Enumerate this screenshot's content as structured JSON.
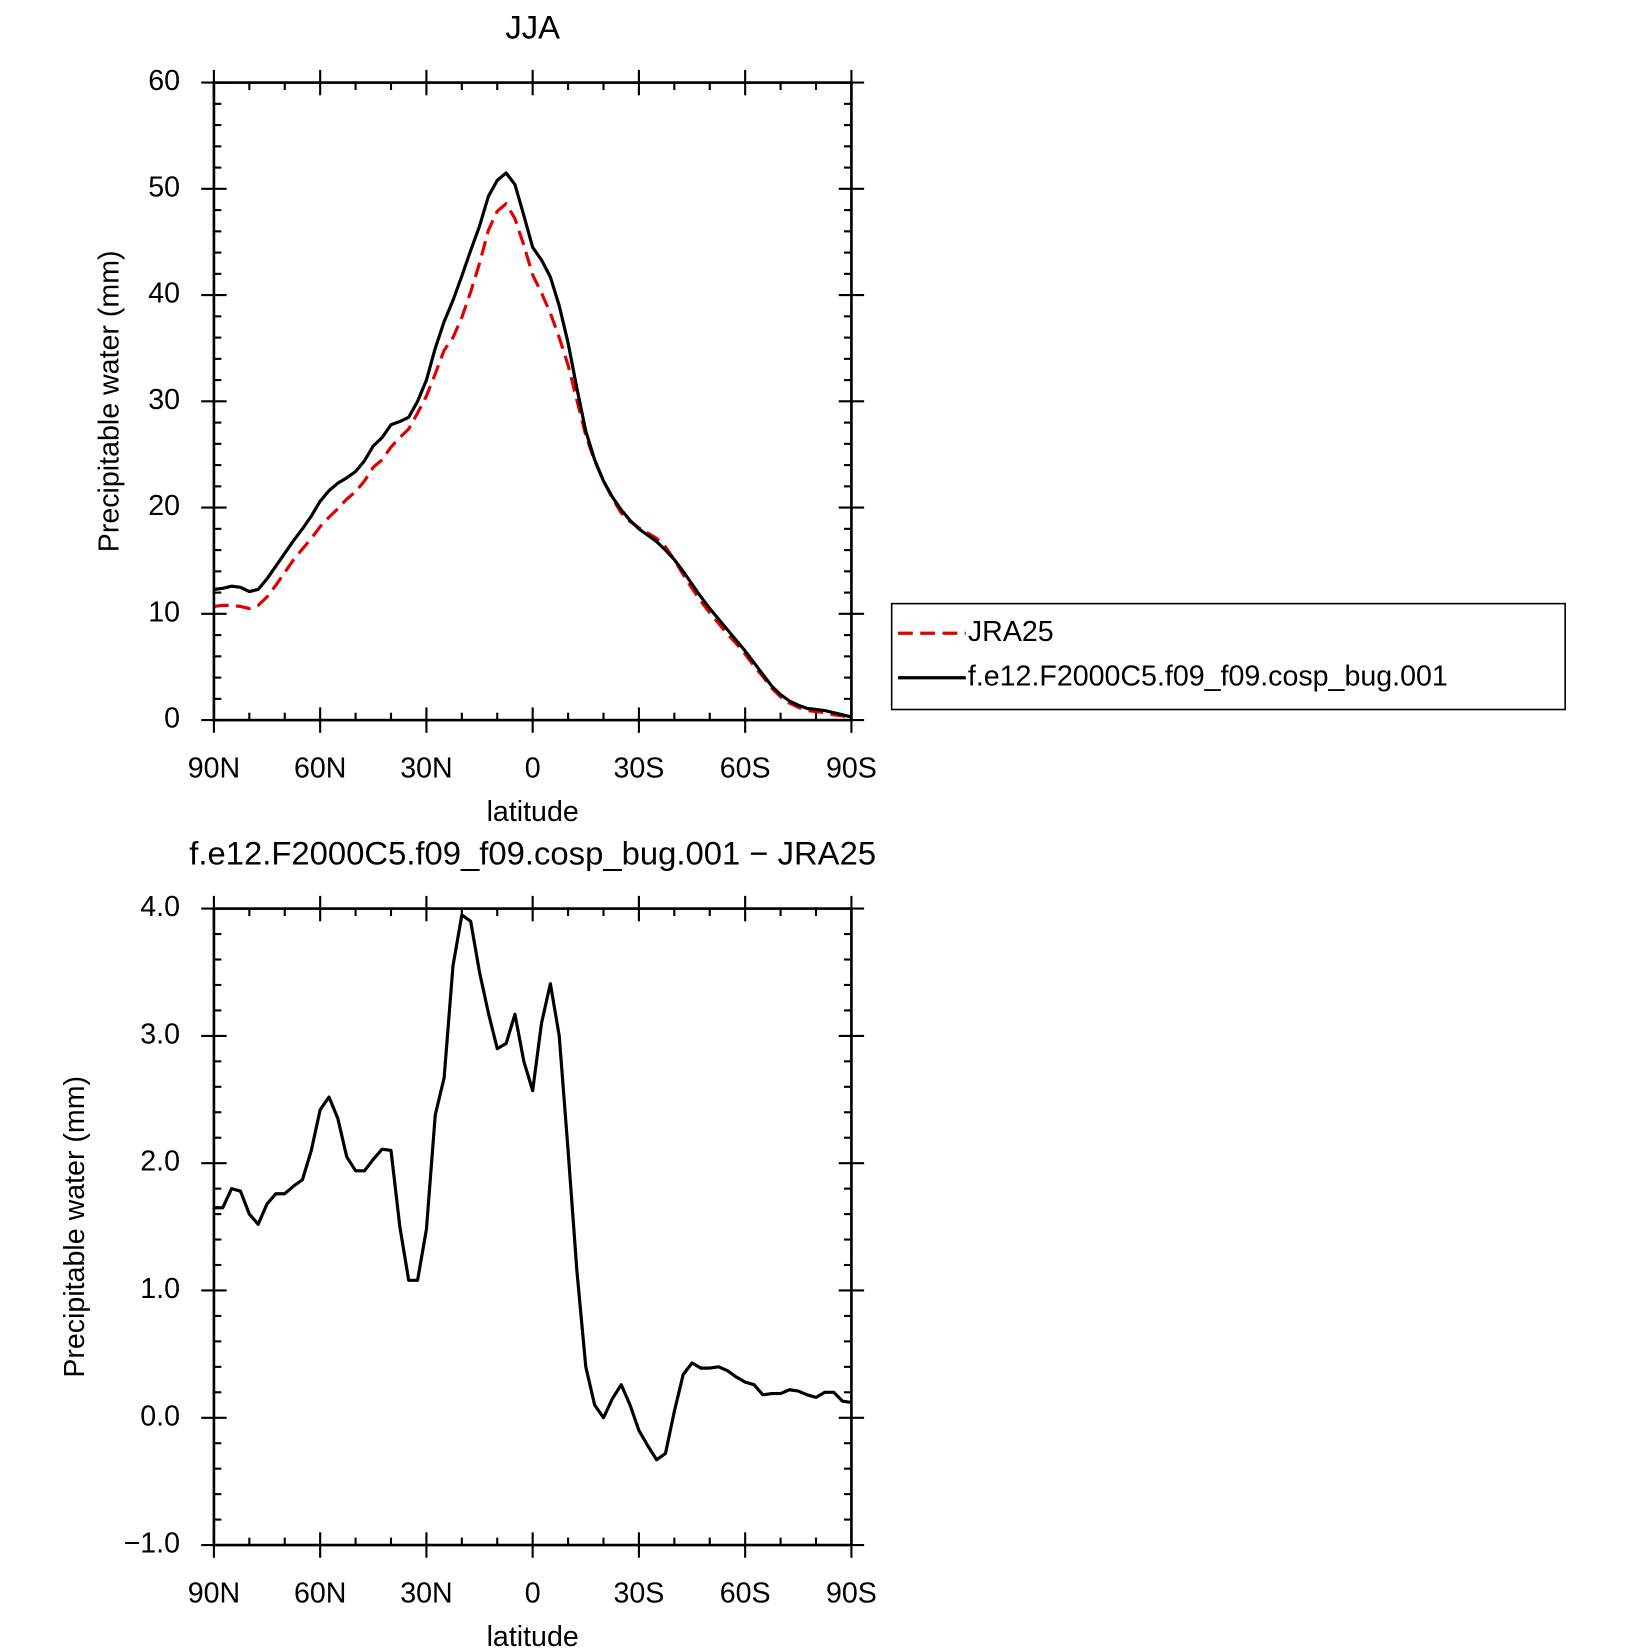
{
  "chart_data": [
    {
      "type": "line",
      "title": "JJA",
      "xlabel": "latitude",
      "ylabel": "Precipitable water (mm)",
      "legend": "right",
      "x": [
        90,
        87.5,
        85,
        82.5,
        80,
        77.5,
        75,
        72.5,
        70,
        67.5,
        65,
        62.5,
        60,
        57.5,
        55,
        52.5,
        50,
        47.5,
        45,
        42.5,
        40,
        37.5,
        35,
        32.5,
        30,
        27.5,
        25,
        22.5,
        20,
        17.5,
        15,
        12.5,
        10,
        7.5,
        5,
        2.5,
        0,
        -2.5,
        -5,
        -7.5,
        -10,
        -12.5,
        -15,
        -17.5,
        -20,
        -22.5,
        -25,
        -27.5,
        -30,
        -32.5,
        -35,
        -37.5,
        -40,
        -42.5,
        -45,
        -47.5,
        -50,
        -52.5,
        -55,
        -57.5,
        -60,
        -62.5,
        -65,
        -67.5,
        -70,
        -72.5,
        -75,
        -77.5,
        -80,
        -82.5,
        -85,
        -87.5,
        -90
      ],
      "series": [
        {
          "name": "JRA25",
          "color": "#e00000",
          "dashed": true,
          "values": [
            10.7,
            10.8,
            10.8,
            10.7,
            10.5,
            10.8,
            11.6,
            12.7,
            13.9,
            15.1,
            16.1,
            17.1,
            18.2,
            19.1,
            19.9,
            20.8,
            21.5,
            22.5,
            23.8,
            24.5,
            25.7,
            26.6,
            27.4,
            28.9,
            30.5,
            32.6,
            34.8,
            36.0,
            37.9,
            40.3,
            43.0,
            46.1,
            47.9,
            48.6,
            47.2,
            44.7,
            41.9,
            40.2,
            38.3,
            36.0,
            33.4,
            30.1,
            26.8,
            24.4,
            22.5,
            20.9,
            19.5,
            18.7,
            18.1,
            17.6,
            17.1,
            16.3,
            15.1,
            13.7,
            12.4,
            11.2,
            10.1,
            9.1,
            8.1,
            7.2,
            6.2,
            5.1,
            4.1,
            3.0,
            2.2,
            1.6,
            1.2,
            0.9,
            0.8,
            0.7,
            0.5,
            0.4,
            0.2
          ]
        },
        {
          "name": "f.e12.F2000C5.f09_f09.cosp_bug.001",
          "color": "#000000",
          "dashed": false,
          "values": [
            12.3,
            12.4,
            12.6,
            12.5,
            12.1,
            12.3,
            13.3,
            14.5,
            15.7,
            16.9,
            18.0,
            19.2,
            20.6,
            21.6,
            22.3,
            22.8,
            23.4,
            24.4,
            25.8,
            26.6,
            27.8,
            28.1,
            28.5,
            30.0,
            32.0,
            35.0,
            37.5,
            39.5,
            41.8,
            44.2,
            46.5,
            49.3,
            50.8,
            51.5,
            50.4,
            47.5,
            44.5,
            43.3,
            41.7,
            39.0,
            35.5,
            31.2,
            27.2,
            24.5,
            22.5,
            21.0,
            19.8,
            18.8,
            18.0,
            17.4,
            16.8,
            16.0,
            15.1,
            14.0,
            12.8,
            11.6,
            10.5,
            9.5,
            8.5,
            7.5,
            6.5,
            5.4,
            4.3,
            3.2,
            2.4,
            1.8,
            1.4,
            1.1,
            1.0,
            0.9,
            0.7,
            0.5,
            0.3
          ]
        }
      ],
      "xlim": [
        90,
        -90
      ],
      "xticks": [
        {
          "value": 90,
          "label": "90N"
        },
        {
          "value": 60,
          "label": "60N"
        },
        {
          "value": 30,
          "label": "30N"
        },
        0,
        {
          "value": -30,
          "label": "30S"
        },
        {
          "value": -60,
          "label": "60S"
        },
        {
          "value": -90,
          "label": "90S"
        }
      ],
      "xminorticks": [
        80,
        70,
        50,
        40,
        20,
        10,
        -10,
        -20,
        -40,
        -50,
        -70,
        -80
      ],
      "ylim": [
        0,
        60
      ],
      "yticks": [
        0,
        10,
        20,
        30,
        40,
        50,
        60
      ],
      "yminorticks": [
        2,
        4,
        6,
        8,
        12,
        14,
        16,
        18,
        22,
        24,
        26,
        28,
        32,
        34,
        36,
        38,
        42,
        44,
        46,
        48,
        52,
        54,
        56,
        58
      ]
    },
    {
      "type": "line",
      "title": "f.e12.F2000C5.f09_f09.cosp_bug.001 − JRA25",
      "xlabel": "latitude",
      "ylabel": "Precipitable water (mm)",
      "x": [
        90,
        87.5,
        85,
        82.5,
        80,
        77.5,
        75,
        72.5,
        70,
        67.5,
        65,
        62.5,
        60,
        57.5,
        55,
        52.5,
        50,
        47.5,
        45,
        42.5,
        40,
        37.5,
        35,
        32.5,
        30,
        27.5,
        25,
        22.5,
        20,
        17.5,
        15,
        12.5,
        10,
        7.5,
        5,
        2.5,
        0,
        -2.5,
        -5,
        -7.5,
        -10,
        -12.5,
        -15,
        -17.5,
        -20,
        -22.5,
        -25,
        -27.5,
        -30,
        -32.5,
        -35,
        -37.5,
        -40,
        -42.5,
        -45,
        -47.5,
        -50,
        -52.5,
        -55,
        -57.5,
        -60,
        -62.5,
        -65,
        -67.5,
        -70,
        -72.5,
        -75,
        -77.5,
        -80,
        -82.5,
        -85,
        -87.5,
        -90
      ],
      "series": [
        {
          "color": "#000000",
          "dashed": false,
          "values": [
            1.65,
            1.65,
            1.8,
            1.78,
            1.6,
            1.52,
            1.68,
            1.76,
            1.76,
            1.82,
            1.87,
            2.1,
            2.42,
            2.52,
            2.35,
            2.05,
            1.94,
            1.94,
            2.03,
            2.11,
            2.1,
            1.5,
            1.08,
            1.08,
            1.48,
            2.38,
            2.67,
            3.55,
            3.95,
            3.9,
            3.5,
            3.18,
            2.9,
            2.94,
            3.17,
            2.8,
            2.57,
            3.1,
            3.41,
            3.0,
            2.1,
            1.15,
            0.4,
            0.1,
            0.0,
            0.15,
            0.26,
            0.1,
            -0.1,
            -0.22,
            -0.33,
            -0.28,
            0.05,
            0.34,
            0.43,
            0.39,
            0.39,
            0.4,
            0.37,
            0.32,
            0.28,
            0.26,
            0.18,
            0.19,
            0.19,
            0.22,
            0.21,
            0.18,
            0.16,
            0.2,
            0.2,
            0.13,
            0.12
          ]
        }
      ],
      "xlim": [
        90,
        -90
      ],
      "xticks": [
        {
          "value": 90,
          "label": "90N"
        },
        {
          "value": 60,
          "label": "60N"
        },
        {
          "value": 30,
          "label": "30N"
        },
        0,
        {
          "value": -30,
          "label": "30S"
        },
        {
          "value": -60,
          "label": "60S"
        },
        {
          "value": -90,
          "label": "90S"
        }
      ],
      "xminorticks": [
        80,
        70,
        50,
        40,
        20,
        10,
        -10,
        -20,
        -40,
        -50,
        -70,
        -80
      ],
      "ylim": [
        -1,
        4
      ],
      "yticks": [
        {
          "value": -1,
          "label": "−1.0"
        },
        {
          "value": 0,
          "label": "0.0"
        },
        {
          "value": 1,
          "label": "1.0"
        },
        {
          "value": 2,
          "label": "2.0"
        },
        {
          "value": 3,
          "label": "3.0"
        },
        {
          "value": 4,
          "label": "4.0"
        }
      ],
      "yminorticks": [
        -0.8,
        -0.6,
        -0.4,
        -0.2,
        0.2,
        0.4,
        0.6,
        0.8,
        1.2,
        1.4,
        1.6,
        1.8,
        2.2,
        2.4,
        2.6,
        2.8,
        3.2,
        3.4,
        3.6,
        3.8
      ]
    }
  ]
}
